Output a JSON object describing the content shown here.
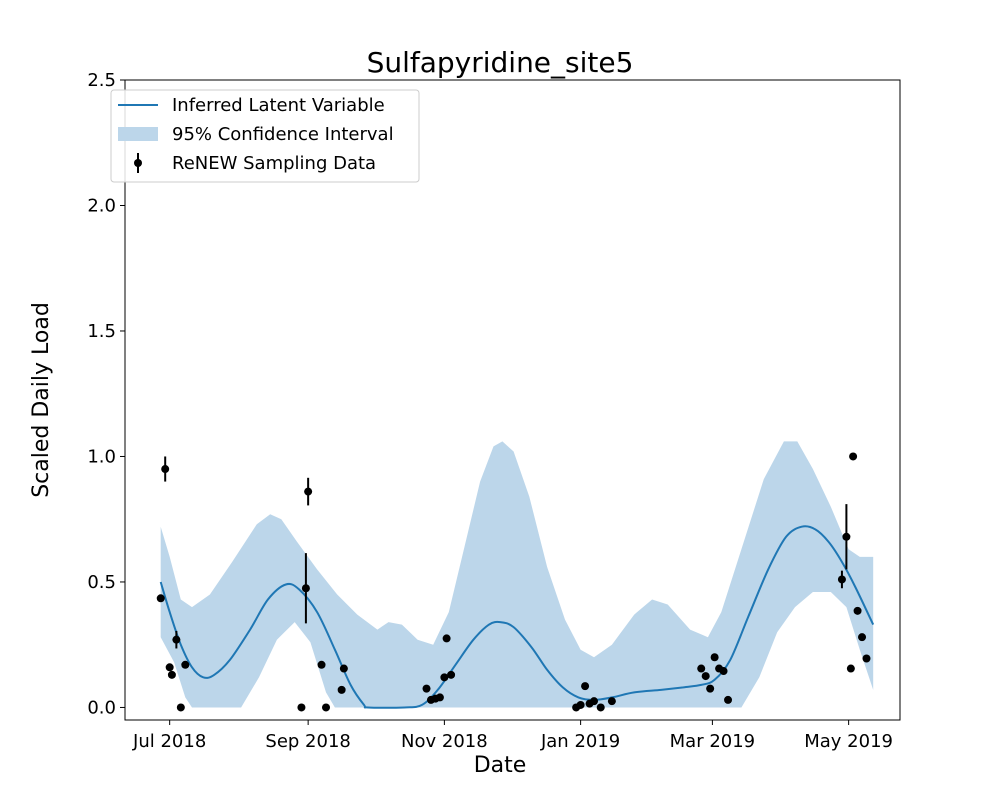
{
  "chart_data": {
    "type": "line",
    "title": "Sulfapyridine_site5",
    "xlabel": "Date",
    "ylabel": "Scaled Daily Load",
    "xlim": [
      "2018-06-11",
      "2019-05-24"
    ],
    "ylim": [
      -0.05,
      2.5
    ],
    "x_ticks": [
      {
        "date": "2018-07-01",
        "label": "Jul 2018"
      },
      {
        "date": "2018-09-01",
        "label": "Sep 2018"
      },
      {
        "date": "2018-11-01",
        "label": "Nov 2018"
      },
      {
        "date": "2019-01-01",
        "label": "Jan 2019"
      },
      {
        "date": "2019-03-01",
        "label": "Mar 2019"
      },
      {
        "date": "2019-05-01",
        "label": "May 2019"
      }
    ],
    "y_ticks": [
      {
        "value": 0.0,
        "label": "0.0"
      },
      {
        "value": 0.5,
        "label": "0.5"
      },
      {
        "value": 1.0,
        "label": "1.0"
      },
      {
        "value": 1.5,
        "label": "1.5"
      },
      {
        "value": 2.0,
        "label": "2.0"
      },
      {
        "value": 2.5,
        "label": "2.5"
      }
    ],
    "legend": {
      "position": "top-left",
      "entries": [
        "Inferred Latent Variable",
        "95% Confidence Interval",
        "ReNEW Sampling Data"
      ]
    },
    "colors": {
      "line": "#1f77b4",
      "band": "#bcd6ea",
      "points": "#000000"
    },
    "series": [
      {
        "name": "Inferred Latent Variable",
        "kind": "line",
        "points": [
          {
            "x": "2018-06-27",
            "y": 0.5
          },
          {
            "x": "2018-07-01",
            "y": 0.38
          },
          {
            "x": "2018-07-06",
            "y": 0.25
          },
          {
            "x": "2018-07-11",
            "y": 0.16
          },
          {
            "x": "2018-07-16",
            "y": 0.12
          },
          {
            "x": "2018-07-21",
            "y": 0.13
          },
          {
            "x": "2018-07-28",
            "y": 0.19
          },
          {
            "x": "2018-08-06",
            "y": 0.31
          },
          {
            "x": "2018-08-14",
            "y": 0.43
          },
          {
            "x": "2018-08-22",
            "y": 0.49
          },
          {
            "x": "2018-08-28",
            "y": 0.47
          },
          {
            "x": "2018-09-05",
            "y": 0.38
          },
          {
            "x": "2018-09-13",
            "y": 0.23
          },
          {
            "x": "2018-09-20",
            "y": 0.09
          },
          {
            "x": "2018-09-26",
            "y": 0.01
          },
          {
            "x": "2018-09-28",
            "y": 0.0
          },
          {
            "x": "2018-10-14",
            "y": 0.0
          },
          {
            "x": "2018-10-22",
            "y": 0.01
          },
          {
            "x": "2018-10-29",
            "y": 0.07
          },
          {
            "x": "2018-11-06",
            "y": 0.17
          },
          {
            "x": "2018-11-14",
            "y": 0.27
          },
          {
            "x": "2018-11-21",
            "y": 0.33
          },
          {
            "x": "2018-11-26",
            "y": 0.34
          },
          {
            "x": "2018-12-02",
            "y": 0.32
          },
          {
            "x": "2018-12-10",
            "y": 0.24
          },
          {
            "x": "2018-12-17",
            "y": 0.15
          },
          {
            "x": "2018-12-24",
            "y": 0.08
          },
          {
            "x": "2018-12-31",
            "y": 0.04
          },
          {
            "x": "2019-01-07",
            "y": 0.03
          },
          {
            "x": "2019-01-15",
            "y": 0.04
          },
          {
            "x": "2019-01-25",
            "y": 0.06
          },
          {
            "x": "2019-02-06",
            "y": 0.07
          },
          {
            "x": "2019-02-16",
            "y": 0.08
          },
          {
            "x": "2019-02-24",
            "y": 0.09
          },
          {
            "x": "2019-03-02",
            "y": 0.11
          },
          {
            "x": "2019-03-09",
            "y": 0.19
          },
          {
            "x": "2019-03-17",
            "y": 0.36
          },
          {
            "x": "2019-03-26",
            "y": 0.55
          },
          {
            "x": "2019-04-03",
            "y": 0.68
          },
          {
            "x": "2019-04-10",
            "y": 0.72
          },
          {
            "x": "2019-04-16",
            "y": 0.71
          },
          {
            "x": "2019-04-22",
            "y": 0.66
          },
          {
            "x": "2019-04-28",
            "y": 0.58
          },
          {
            "x": "2019-05-04",
            "y": 0.48
          },
          {
            "x": "2019-05-12",
            "y": 0.33
          }
        ]
      },
      {
        "name": "95% Confidence Interval",
        "kind": "band",
        "upper": [
          {
            "x": "2018-06-27",
            "y": 0.72
          },
          {
            "x": "2018-07-01",
            "y": 0.6
          },
          {
            "x": "2018-07-06",
            "y": 0.43
          },
          {
            "x": "2018-07-11",
            "y": 0.4
          },
          {
            "x": "2018-07-19",
            "y": 0.45
          },
          {
            "x": "2018-07-29",
            "y": 0.58
          },
          {
            "x": "2018-08-09",
            "y": 0.73
          },
          {
            "x": "2018-08-15",
            "y": 0.77
          },
          {
            "x": "2018-08-20",
            "y": 0.75
          },
          {
            "x": "2018-08-27",
            "y": 0.66
          },
          {
            "x": "2018-09-05",
            "y": 0.55
          },
          {
            "x": "2018-09-14",
            "y": 0.45
          },
          {
            "x": "2018-09-23",
            "y": 0.37
          },
          {
            "x": "2018-10-02",
            "y": 0.31
          },
          {
            "x": "2018-10-07",
            "y": 0.34
          },
          {
            "x": "2018-10-13",
            "y": 0.33
          },
          {
            "x": "2018-10-20",
            "y": 0.27
          },
          {
            "x": "2018-10-27",
            "y": 0.25
          },
          {
            "x": "2018-11-03",
            "y": 0.38
          },
          {
            "x": "2018-11-10",
            "y": 0.64
          },
          {
            "x": "2018-11-17",
            "y": 0.9
          },
          {
            "x": "2018-11-23",
            "y": 1.04
          },
          {
            "x": "2018-11-27",
            "y": 1.06
          },
          {
            "x": "2018-12-02",
            "y": 1.02
          },
          {
            "x": "2018-12-09",
            "y": 0.84
          },
          {
            "x": "2018-12-17",
            "y": 0.56
          },
          {
            "x": "2018-12-25",
            "y": 0.35
          },
          {
            "x": "2019-01-01",
            "y": 0.23
          },
          {
            "x": "2019-01-07",
            "y": 0.2
          },
          {
            "x": "2019-01-15",
            "y": 0.25
          },
          {
            "x": "2019-01-25",
            "y": 0.37
          },
          {
            "x": "2019-02-02",
            "y": 0.43
          },
          {
            "x": "2019-02-09",
            "y": 0.41
          },
          {
            "x": "2019-02-19",
            "y": 0.31
          },
          {
            "x": "2019-02-27",
            "y": 0.28
          },
          {
            "x": "2019-03-05",
            "y": 0.38
          },
          {
            "x": "2019-03-14",
            "y": 0.63
          },
          {
            "x": "2019-03-24",
            "y": 0.91
          },
          {
            "x": "2019-04-02",
            "y": 1.06
          },
          {
            "x": "2019-04-08",
            "y": 1.06
          },
          {
            "x": "2019-04-15",
            "y": 0.95
          },
          {
            "x": "2019-04-23",
            "y": 0.8
          },
          {
            "x": "2019-05-01",
            "y": 0.63
          },
          {
            "x": "2019-05-06",
            "y": 0.6
          },
          {
            "x": "2019-05-12",
            "y": 0.6
          }
        ],
        "lower": [
          {
            "x": "2018-06-27",
            "y": 0.28
          },
          {
            "x": "2018-07-03",
            "y": 0.18
          },
          {
            "x": "2018-07-08",
            "y": 0.04
          },
          {
            "x": "2018-07-11",
            "y": 0.0
          },
          {
            "x": "2018-08-02",
            "y": 0.0
          },
          {
            "x": "2018-08-10",
            "y": 0.12
          },
          {
            "x": "2018-08-18",
            "y": 0.27
          },
          {
            "x": "2018-08-26",
            "y": 0.34
          },
          {
            "x": "2018-09-02",
            "y": 0.26
          },
          {
            "x": "2018-09-09",
            "y": 0.06
          },
          {
            "x": "2018-09-13",
            "y": 0.0
          },
          {
            "x": "2018-10-31",
            "y": 0.0
          },
          {
            "x": "2018-12-21",
            "y": 0.0
          },
          {
            "x": "2019-02-01",
            "y": 0.0
          },
          {
            "x": "2019-03-08",
            "y": 0.0
          },
          {
            "x": "2019-03-14",
            "y": 0.0
          },
          {
            "x": "2019-03-22",
            "y": 0.12
          },
          {
            "x": "2019-03-30",
            "y": 0.3
          },
          {
            "x": "2019-04-07",
            "y": 0.4
          },
          {
            "x": "2019-04-15",
            "y": 0.46
          },
          {
            "x": "2019-04-23",
            "y": 0.46
          },
          {
            "x": "2019-04-30",
            "y": 0.4
          },
          {
            "x": "2019-05-06",
            "y": 0.23
          },
          {
            "x": "2019-05-12",
            "y": 0.07
          }
        ]
      },
      {
        "name": "ReNEW Sampling Data",
        "kind": "scatter",
        "points": [
          {
            "x": "2018-06-27",
            "y": 0.435
          },
          {
            "x": "2018-06-29",
            "y": 0.95,
            "err": 0.05
          },
          {
            "x": "2018-07-01",
            "y": 0.16
          },
          {
            "x": "2018-07-02",
            "y": 0.13
          },
          {
            "x": "2018-07-04",
            "y": 0.27,
            "err": 0.035
          },
          {
            "x": "2018-07-06",
            "y": 0.0
          },
          {
            "x": "2018-07-08",
            "y": 0.17
          },
          {
            "x": "2018-08-29",
            "y": 0.0
          },
          {
            "x": "2018-08-31",
            "y": 0.475,
            "err": 0.14
          },
          {
            "x": "2018-09-01",
            "y": 0.86,
            "err": 0.055
          },
          {
            "x": "2018-09-07",
            "y": 0.17
          },
          {
            "x": "2018-09-09",
            "y": 0.0
          },
          {
            "x": "2018-09-16",
            "y": 0.07
          },
          {
            "x": "2018-09-17",
            "y": 0.155
          },
          {
            "x": "2018-10-24",
            "y": 0.075
          },
          {
            "x": "2018-10-26",
            "y": 0.03
          },
          {
            "x": "2018-10-28",
            "y": 0.035
          },
          {
            "x": "2018-10-30",
            "y": 0.04
          },
          {
            "x": "2018-11-01",
            "y": 0.12
          },
          {
            "x": "2018-11-02",
            "y": 0.275
          },
          {
            "x": "2018-11-04",
            "y": 0.13
          },
          {
            "x": "2018-12-30",
            "y": 0.0
          },
          {
            "x": "2019-01-01",
            "y": 0.01
          },
          {
            "x": "2019-01-03",
            "y": 0.085
          },
          {
            "x": "2019-01-05",
            "y": 0.015
          },
          {
            "x": "2019-01-07",
            "y": 0.025
          },
          {
            "x": "2019-01-10",
            "y": 0.0
          },
          {
            "x": "2019-01-15",
            "y": 0.025
          },
          {
            "x": "2019-02-24",
            "y": 0.155
          },
          {
            "x": "2019-02-26",
            "y": 0.125
          },
          {
            "x": "2019-02-28",
            "y": 0.075
          },
          {
            "x": "2019-03-02",
            "y": 0.2
          },
          {
            "x": "2019-03-04",
            "y": 0.155
          },
          {
            "x": "2019-03-06",
            "y": 0.145
          },
          {
            "x": "2019-03-08",
            "y": 0.03
          },
          {
            "x": "2019-04-28",
            "y": 0.51,
            "err": 0.035
          },
          {
            "x": "2019-04-30",
            "y": 0.68,
            "err": 0.13
          },
          {
            "x": "2019-05-02",
            "y": 0.155
          },
          {
            "x": "2019-05-03",
            "y": 1.0
          },
          {
            "x": "2019-05-05",
            "y": 0.385
          },
          {
            "x": "2019-05-07",
            "y": 0.28
          },
          {
            "x": "2019-05-09",
            "y": 0.195
          }
        ]
      }
    ]
  }
}
